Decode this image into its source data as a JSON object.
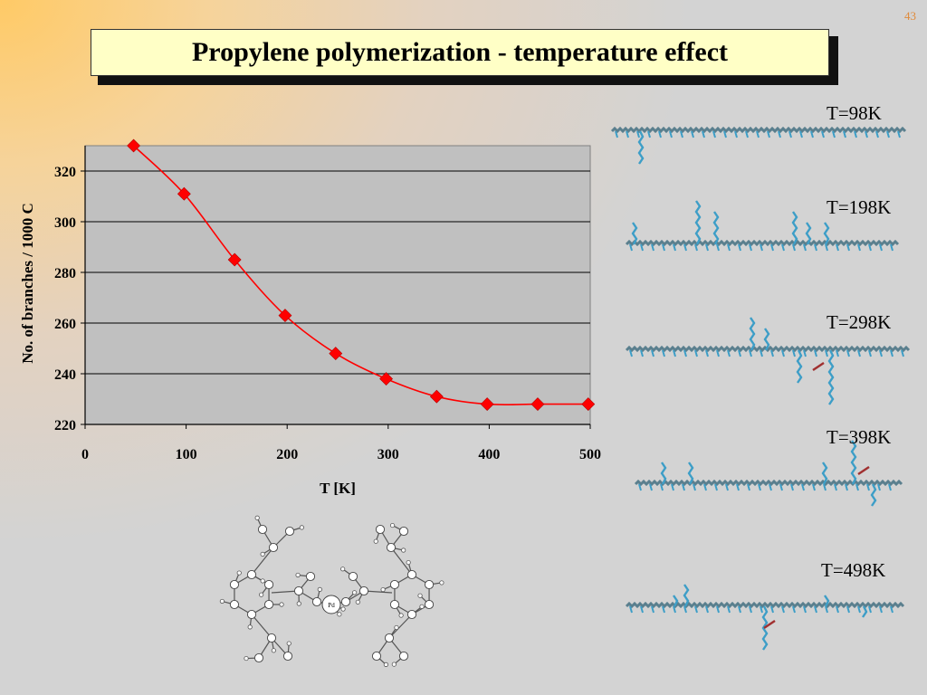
{
  "slide": {
    "number": "43",
    "title": "Propylene polymerization - temperature effect",
    "colors": {
      "plot_bg": "#c0c0c0",
      "series": "#ff0000",
      "title_bg": "#ffffc6",
      "molecule_chain": "#5a7f8e",
      "branch": "#3d9ec7"
    }
  },
  "chart_data": {
    "type": "line",
    "title": "",
    "xlabel": "T [K]",
    "ylabel": "No. of branches / 1000 C",
    "xlim": [
      0,
      500
    ],
    "ylim": [
      220,
      330
    ],
    "xticks": [
      0,
      100,
      200,
      300,
      400,
      500
    ],
    "yticks": [
      220,
      240,
      260,
      280,
      300,
      320
    ],
    "grid": "horizontal",
    "legend": "none",
    "series": [
      {
        "marker": "diamond",
        "color": "#ff0000",
        "smooth": true,
        "x": [
          48,
          98,
          148,
          198,
          248,
          298,
          348,
          398,
          448,
          498
        ],
        "y": [
          330,
          311,
          285,
          263,
          248,
          238,
          231,
          228,
          228,
          228
        ]
      }
    ]
  },
  "structures": {
    "labels": [
      "T=98K",
      "T=198K",
      "T=298K",
      "T=398K",
      "T=498K"
    ],
    "pd_label": "Pd"
  }
}
